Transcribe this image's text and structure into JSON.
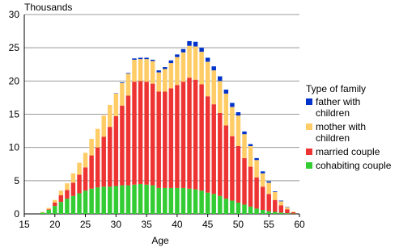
{
  "chart_data": {
    "type": "bar",
    "y_label": "Thousands",
    "x_label": "Age",
    "legend_title": "Type of family",
    "stacked": true,
    "grid": true,
    "x": [
      18,
      19,
      20,
      21,
      22,
      23,
      24,
      25,
      26,
      27,
      28,
      29,
      30,
      31,
      32,
      33,
      34,
      35,
      36,
      37,
      38,
      39,
      40,
      41,
      42,
      43,
      44,
      45,
      46,
      47,
      48,
      49,
      50,
      51,
      52,
      53,
      54,
      55,
      56,
      57,
      58,
      59
    ],
    "xlim": [
      15,
      60
    ],
    "xticks": [
      15,
      20,
      25,
      30,
      35,
      40,
      45,
      50,
      55,
      60
    ],
    "ylim": [
      0,
      30
    ],
    "yticks": [
      0,
      5,
      10,
      15,
      20,
      25,
      30
    ],
    "series": [
      {
        "name": "cohabiting couple",
        "color": "#33cc33",
        "values": [
          0.2,
          0.6,
          1.2,
          1.8,
          2.3,
          2.7,
          3.1,
          3.5,
          3.8,
          4,
          4.1,
          4.1,
          4.2,
          4.3,
          4.3,
          4.4,
          4.5,
          4.4,
          4.3,
          3.9,
          3.9,
          3.9,
          3.9,
          3.9,
          3.8,
          3.7,
          3.5,
          3.2,
          3,
          2.7,
          2.3,
          2,
          1.7,
          1.4,
          1.1,
          0.8,
          0.6,
          0.4,
          0.3,
          0.2,
          0.1,
          0.05
        ]
      },
      {
        "name": "married couple",
        "color": "#ee3333",
        "values": [
          0,
          0.1,
          0.5,
          1,
          1.3,
          2,
          2.8,
          3.5,
          5,
          6,
          7.5,
          9,
          10.5,
          12,
          13.5,
          15.5,
          15.5,
          15.5,
          15.3,
          14.5,
          14.5,
          15,
          15.5,
          16,
          16.7,
          16.5,
          16,
          14.5,
          13.5,
          12.5,
          11,
          9.7,
          8.5,
          7,
          6,
          4.7,
          3.5,
          2.6,
          1.8,
          1.1,
          0.6,
          0.2
        ]
      },
      {
        "name": "mother with children",
        "color": "#ffcc66",
        "values": [
          0.1,
          0.2,
          0.4,
          0.7,
          1,
          1.4,
          1.8,
          2.2,
          2.5,
          2.8,
          3.2,
          3.3,
          3.4,
          3.4,
          3.3,
          3.3,
          3.3,
          3.4,
          3.4,
          2.9,
          3.4,
          3.8,
          4.2,
          4.4,
          4.8,
          5,
          4.9,
          5.2,
          5.1,
          4.8,
          4.8,
          4.4,
          4.6,
          3.6,
          3.1,
          2.6,
          2,
          1.7,
          1.2,
          0.6,
          0.3,
          0.1
        ]
      },
      {
        "name": "father with children",
        "color": "#0033cc",
        "values": [
          0,
          0,
          0,
          0,
          0,
          0,
          0,
          0,
          0,
          0,
          0,
          0,
          0.05,
          0.1,
          0.1,
          0.2,
          0.2,
          0.2,
          0.2,
          0.3,
          0.3,
          0.4,
          0.4,
          0.5,
          0.7,
          0.7,
          0.6,
          0.6,
          0.6,
          0.7,
          0.6,
          0.6,
          0.5,
          0.4,
          0.3,
          0.3,
          0.3,
          0.2,
          0.1,
          0.1,
          0.05,
          0
        ]
      }
    ]
  }
}
